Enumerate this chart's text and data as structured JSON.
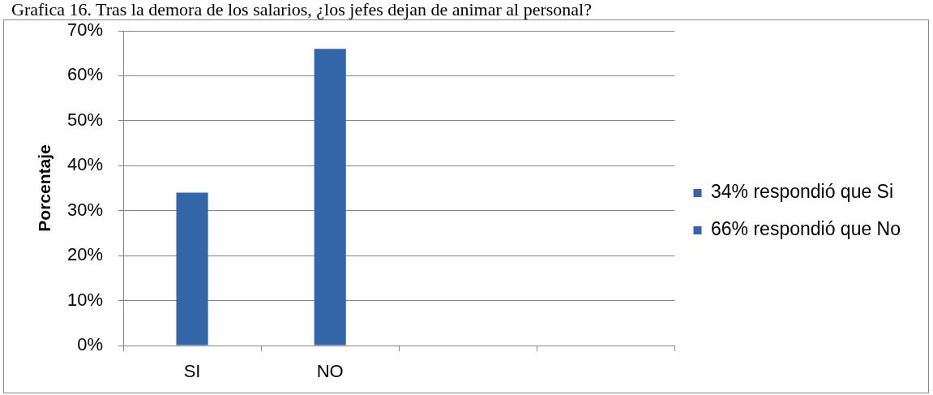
{
  "chart_data": {
    "type": "bar",
    "title": "Grafica 16. Tras la demora de los salarios, ¿los jefes dejan de animar al personal?",
    "ylabel": "Porcentaje",
    "categories": [
      "SI",
      "NO",
      null,
      null
    ],
    "series": [
      {
        "name": "34% respondió que Si",
        "color": "#3366a8",
        "values": [
          34,
          null,
          null,
          null
        ]
      },
      {
        "name": "66% respondió que No",
        "color": "#3366a8",
        "values": [
          null,
          66,
          null,
          null
        ]
      }
    ],
    "ylim": [
      0,
      70
    ],
    "yticks": [
      {
        "value": 0,
        "label": "0%"
      },
      {
        "value": 10,
        "label": "10%"
      },
      {
        "value": 20,
        "label": "20%"
      },
      {
        "value": 30,
        "label": "30%"
      },
      {
        "value": 40,
        "label": "40%"
      },
      {
        "value": 50,
        "label": "50%"
      },
      {
        "value": 60,
        "label": "60%"
      },
      {
        "value": 70,
        "label": "70%"
      }
    ],
    "grid": "y",
    "legend": "right"
  }
}
